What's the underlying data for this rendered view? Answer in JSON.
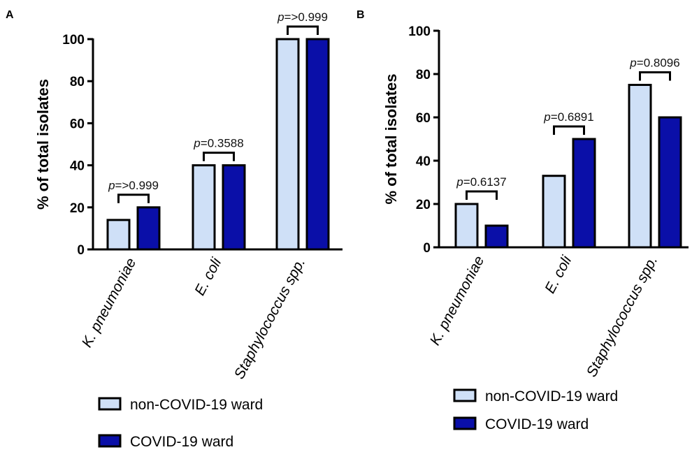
{
  "chart_data": [
    {
      "panel": "A",
      "type": "bar",
      "ylabel": "% of total isolates",
      "ylim": [
        0,
        100
      ],
      "yticks": [
        0,
        20,
        40,
        60,
        80,
        100
      ],
      "categories": [
        "K. pneumoniae",
        "E. coli",
        "Staphylococcus spp."
      ],
      "series": [
        {
          "name": "non-COVID-19 ward",
          "color": "#cfe0f7",
          "values": [
            14,
            40,
            100
          ]
        },
        {
          "name": "COVID-19 ward",
          "color": "#0a0fa8",
          "values": [
            20,
            40,
            100
          ]
        }
      ],
      "annotations": [
        {
          "prefix": "p",
          "text": "=>0.999"
        },
        {
          "prefix": "p",
          "text": "=0.3588"
        },
        {
          "prefix": "p",
          "text": "=>0.999"
        }
      ],
      "legend": [
        "non-COVID-19 ward",
        "COVID-19 ward"
      ]
    },
    {
      "panel": "B",
      "type": "bar",
      "ylabel": "% of total isolates",
      "ylim": [
        0,
        100
      ],
      "yticks": [
        0,
        20,
        40,
        60,
        80,
        100
      ],
      "categories": [
        "K. pneumoniae",
        "E. coli",
        "Staphylococcus spp."
      ],
      "series": [
        {
          "name": "non-COVID-19 ward",
          "color": "#cfe0f7",
          "values": [
            20,
            33,
            75
          ]
        },
        {
          "name": "COVID-19 ward",
          "color": "#0a0fa8",
          "values": [
            10,
            50,
            60
          ]
        }
      ],
      "annotations": [
        {
          "prefix": "p",
          "text": "=0.6137"
        },
        {
          "prefix": "p",
          "text": "=0.6891"
        },
        {
          "prefix": "p",
          "text": "=0.8096"
        }
      ],
      "legend": [
        "non-COVID-19 ward",
        "COVID-19 ward"
      ]
    }
  ]
}
